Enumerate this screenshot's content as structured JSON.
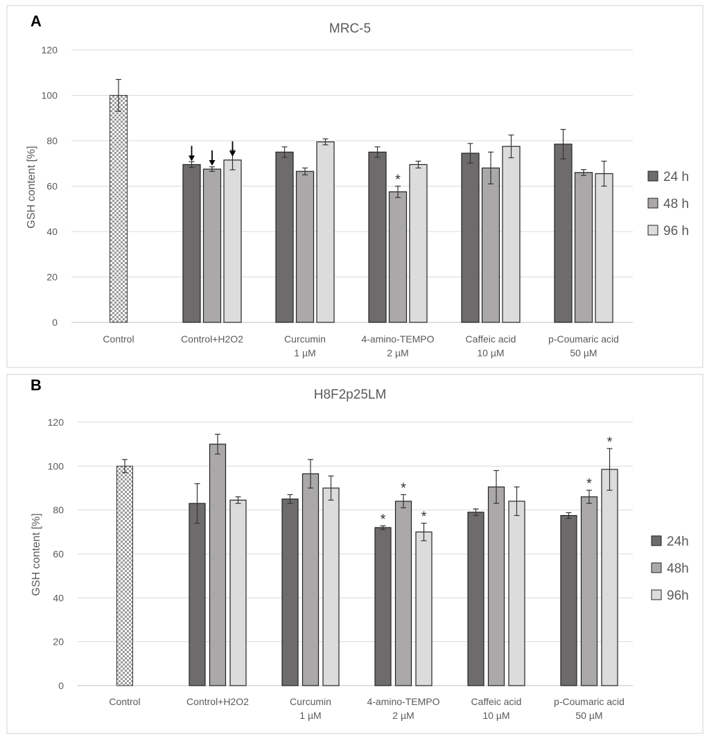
{
  "chart_data": [
    {
      "type": "bar",
      "panel": "A",
      "title": "MRC-5",
      "ylabel": "GSH content [%]",
      "xlabel": "",
      "ylim": [
        0,
        120
      ],
      "yticks": [
        0,
        20,
        40,
        60,
        80,
        100,
        120
      ],
      "grid": true,
      "legend_position": "right",
      "categories": [
        {
          "lines": [
            "Control"
          ]
        },
        {
          "lines": [
            "Control+H2O2"
          ]
        },
        {
          "lines": [
            "Curcumin",
            "1 µM"
          ]
        },
        {
          "lines": [
            "4-amino-TEMPO",
            "2 µM"
          ]
        },
        {
          "lines": [
            "Caffeic acid",
            "10 µM"
          ]
        },
        {
          "lines": [
            "p-Coumaric acid",
            "50 µM"
          ]
        }
      ],
      "control": {
        "value": 100,
        "error": 7,
        "pattern": "checkered"
      },
      "series": [
        {
          "name": "24 h",
          "color": "#6e6b6c",
          "values": [
            null,
            69.5,
            75,
            75,
            74.5,
            78.5
          ],
          "errors": [
            null,
            1.3,
            2.3,
            2.3,
            4.3,
            6.5
          ],
          "marks": [
            "",
            "arrow",
            "",
            "",
            "",
            ""
          ]
        },
        {
          "name": "48 h",
          "color": "#aaa8a9",
          "values": [
            null,
            67.5,
            66.5,
            57.5,
            68,
            66
          ],
          "errors": [
            null,
            1.0,
            1.5,
            2.5,
            7.0,
            1.3
          ],
          "marks": [
            "",
            "arrow",
            "",
            "*",
            "",
            ""
          ]
        },
        {
          "name": "96 h",
          "color": "#dcdcdc",
          "values": [
            null,
            71.5,
            79.5,
            69.5,
            77.5,
            65.5
          ],
          "errors": [
            null,
            4.3,
            1.3,
            1.5,
            5.0,
            5.5
          ],
          "marks": [
            "",
            "arrow",
            "",
            "",
            "",
            ""
          ]
        }
      ]
    },
    {
      "type": "bar",
      "panel": "B",
      "title": "H8F2p25LM",
      "ylabel": "GSH content [%]",
      "xlabel": "",
      "ylim": [
        0,
        120
      ],
      "yticks": [
        0,
        20,
        40,
        60,
        80,
        100,
        120
      ],
      "grid": true,
      "legend_position": "right",
      "categories": [
        {
          "lines": [
            "Control"
          ]
        },
        {
          "lines": [
            "Control+H2O2"
          ]
        },
        {
          "lines": [
            "Curcumin",
            "1 µM"
          ]
        },
        {
          "lines": [
            "4-amino-TEMPO",
            "2 µM"
          ]
        },
        {
          "lines": [
            "Caffeic acid",
            "10 µM"
          ]
        },
        {
          "lines": [
            "p-Coumaric acid",
            "50 µM"
          ]
        }
      ],
      "control": {
        "value": 100,
        "error": 3,
        "pattern": "checkered"
      },
      "series": [
        {
          "name": "24h",
          "color": "#6e6b6c",
          "values": [
            null,
            83,
            85,
            72,
            79,
            77.5
          ],
          "errors": [
            null,
            9,
            2,
            0.8,
            1.5,
            1.3
          ],
          "marks": [
            "",
            "",
            "",
            "*",
            "",
            ""
          ]
        },
        {
          "name": "48h",
          "color": "#aaa8a9",
          "values": [
            null,
            110,
            96.5,
            84,
            90.5,
            86
          ],
          "errors": [
            null,
            4.5,
            6.5,
            3.0,
            7.5,
            3.0
          ],
          "marks": [
            "",
            "",
            "",
            "*",
            "",
            "*"
          ]
        },
        {
          "name": "96h",
          "color": "#dcdcdc",
          "values": [
            null,
            84.5,
            90,
            70,
            84,
            98.5
          ],
          "errors": [
            null,
            1.5,
            5.5,
            4.0,
            6.5,
            9.5
          ],
          "marks": [
            "",
            "",
            "",
            "*",
            "",
            "*"
          ]
        }
      ]
    }
  ]
}
